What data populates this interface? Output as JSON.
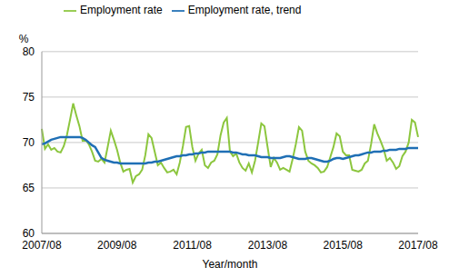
{
  "chart_data": {
    "type": "line",
    "x_label": "Year/month",
    "y_label": "%",
    "categories": [
      "2007/08",
      null,
      null,
      null,
      null,
      null,
      null,
      null,
      null,
      null,
      null,
      null,
      null,
      null,
      null,
      null,
      null,
      null,
      null,
      null,
      null,
      null,
      null,
      null,
      "2009/08",
      null,
      null,
      null,
      null,
      null,
      null,
      null,
      null,
      null,
      null,
      null,
      null,
      null,
      null,
      null,
      null,
      null,
      null,
      null,
      null,
      null,
      null,
      null,
      "2011/08",
      null,
      null,
      null,
      null,
      null,
      null,
      null,
      null,
      null,
      null,
      null,
      null,
      null,
      null,
      null,
      null,
      null,
      null,
      null,
      null,
      null,
      null,
      null,
      "2013/08",
      null,
      null,
      null,
      null,
      null,
      null,
      null,
      null,
      null,
      null,
      null,
      null,
      null,
      null,
      null,
      null,
      null,
      null,
      null,
      null,
      null,
      null,
      null,
      "2015/08",
      null,
      null,
      null,
      null,
      null,
      null,
      null,
      null,
      null,
      null,
      null,
      null,
      null,
      null,
      null,
      null,
      null,
      null,
      null,
      null,
      null,
      null,
      null,
      "2017/08"
    ],
    "series": [
      {
        "name": "Employment rate",
        "color": "#8cc63e",
        "values": [
          71.5,
          69.3,
          69.8,
          69.2,
          69.4,
          69.0,
          68.9,
          69.6,
          70.8,
          72.5,
          74.3,
          73.0,
          71.8,
          70.2,
          70.3,
          69.8,
          69.0,
          68.0,
          67.9,
          68.2,
          67.8,
          69.5,
          71.3,
          70.3,
          69.2,
          67.8,
          66.8,
          67.0,
          67.1,
          65.6,
          66.3,
          66.5,
          67.0,
          68.6,
          70.9,
          70.5,
          69.0,
          67.5,
          67.8,
          67.2,
          66.7,
          66.8,
          67.0,
          66.5,
          67.8,
          69.6,
          71.7,
          71.8,
          69.5,
          68.0,
          68.8,
          69.2,
          67.5,
          67.2,
          67.8,
          68.0,
          68.7,
          70.8,
          72.2,
          72.7,
          69.0,
          68.5,
          68.8,
          67.8,
          67.2,
          66.9,
          67.7,
          66.7,
          68.0,
          70.0,
          72.1,
          71.8,
          69.5,
          67.3,
          68.3,
          67.8,
          67.0,
          67.2,
          67.0,
          66.8,
          68.2,
          69.8,
          71.7,
          71.3,
          69.0,
          68.0,
          67.7,
          67.5,
          67.2,
          66.7,
          66.8,
          67.3,
          68.4,
          69.5,
          71.0,
          70.7,
          69.0,
          68.6,
          68.6,
          67.0,
          66.9,
          66.8,
          67.0,
          67.7,
          68.0,
          69.8,
          72.0,
          71.0,
          70.2,
          69.3,
          68.0,
          68.3,
          67.8,
          67.1,
          67.4,
          68.5,
          69.0,
          70.0,
          72.5,
          72.2,
          70.6
        ]
      },
      {
        "name": "Employment rate, trend",
        "color": "#1f6fb5",
        "values": [
          69.8,
          69.9,
          70.1,
          70.3,
          70.4,
          70.5,
          70.6,
          70.6,
          70.6,
          70.6,
          70.6,
          70.6,
          70.6,
          70.5,
          70.3,
          70.0,
          69.7,
          69.5,
          68.9,
          68.3,
          68.1,
          68.0,
          67.9,
          67.8,
          67.8,
          67.7,
          67.7,
          67.7,
          67.7,
          67.7,
          67.7,
          67.7,
          67.7,
          67.7,
          67.8,
          67.8,
          67.9,
          67.9,
          68.0,
          68.1,
          68.2,
          68.3,
          68.4,
          68.5,
          68.5,
          68.6,
          68.6,
          68.7,
          68.7,
          68.8,
          68.8,
          68.9,
          68.9,
          69.0,
          69.0,
          69.0,
          69.0,
          69.0,
          69.0,
          69.0,
          69.0,
          68.9,
          68.9,
          68.8,
          68.7,
          68.7,
          68.6,
          68.6,
          68.6,
          68.5,
          68.4,
          68.4,
          68.4,
          68.3,
          68.3,
          68.3,
          68.3,
          68.4,
          68.5,
          68.5,
          68.4,
          68.3,
          68.2,
          68.2,
          68.2,
          68.3,
          68.3,
          68.2,
          68.1,
          68.0,
          67.9,
          67.9,
          68.0,
          68.2,
          68.3,
          68.3,
          68.2,
          68.3,
          68.4,
          68.5,
          68.6,
          68.6,
          68.7,
          68.8,
          68.9,
          68.9,
          69.0,
          69.0,
          69.0,
          69.1,
          69.1,
          69.2,
          69.2,
          69.2,
          69.3,
          69.3,
          69.3,
          69.4,
          69.4,
          69.4,
          69.4
        ]
      }
    ],
    "ylim": [
      60,
      80
    ],
    "yticks": [
      60,
      65,
      70,
      75,
      80
    ],
    "grid": true,
    "legend": "top-left"
  }
}
